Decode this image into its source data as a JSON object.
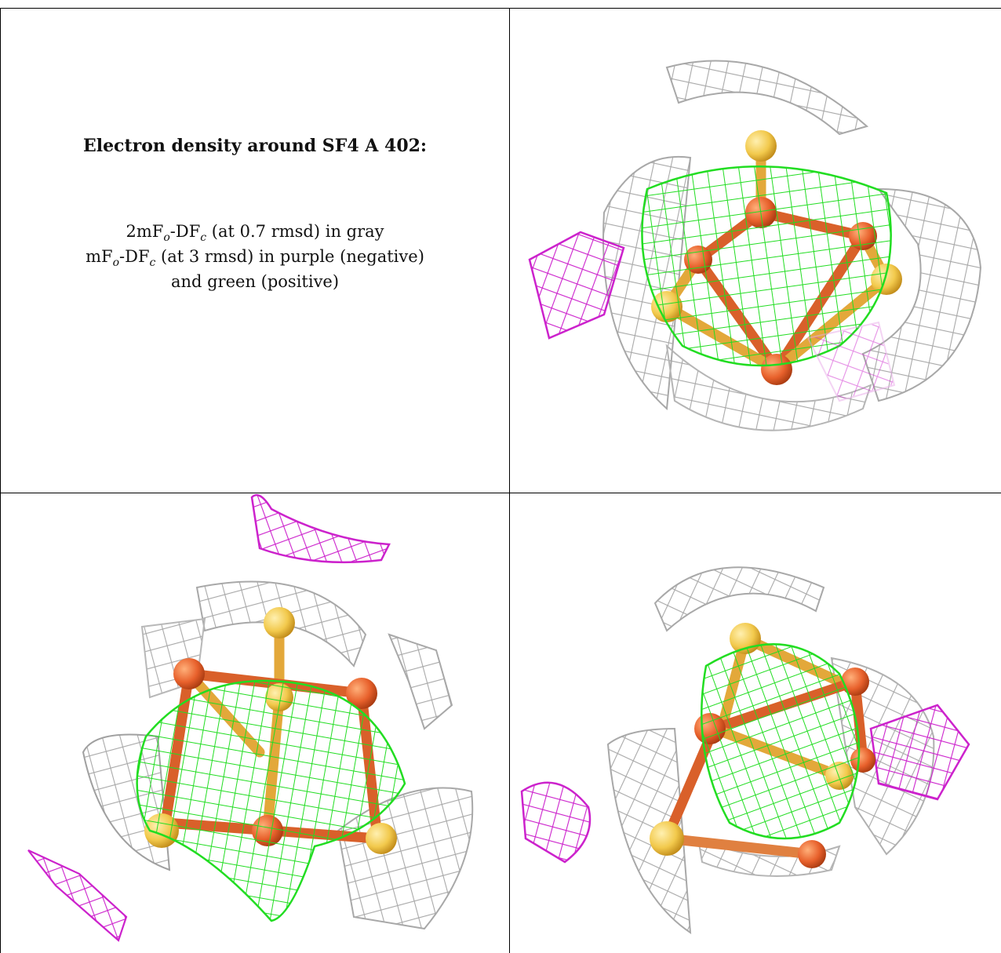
{
  "caption": {
    "title": "Electron density around SF4 A 402:",
    "line1_pre": "2mF",
    "line1_sub1": "o",
    "line1_mid": "-DF",
    "line1_sub2": "c",
    "line1_post": " (at 0.7 rmsd) in gray",
    "line2_pre": "mF",
    "line2_sub1": "o",
    "line2_mid": "-DF",
    "line2_sub2": "c",
    "line2_post": " (at 3 rmsd) in purple (negative)",
    "line3": "and green (positive)"
  },
  "colors": {
    "gray_map": "#9e9e9e",
    "negative_map": "#cc22cc",
    "positive_map": "#22dd22",
    "iron": "#e8612c",
    "sulfur": "#f2c94c"
  },
  "panels": [
    {
      "name": "view-1",
      "icons": [
        "gray-mesh-icon",
        "green-mesh-icon",
        "purple-mesh-icon",
        "fe4s4-cluster-icon"
      ]
    },
    {
      "name": "view-2",
      "icons": [
        "gray-mesh-icon",
        "green-mesh-icon",
        "purple-mesh-icon",
        "fe4s4-cluster-icon"
      ]
    },
    {
      "name": "view-3",
      "icons": [
        "gray-mesh-icon",
        "green-mesh-icon",
        "purple-mesh-icon",
        "fe4s4-cluster-icon"
      ]
    }
  ]
}
